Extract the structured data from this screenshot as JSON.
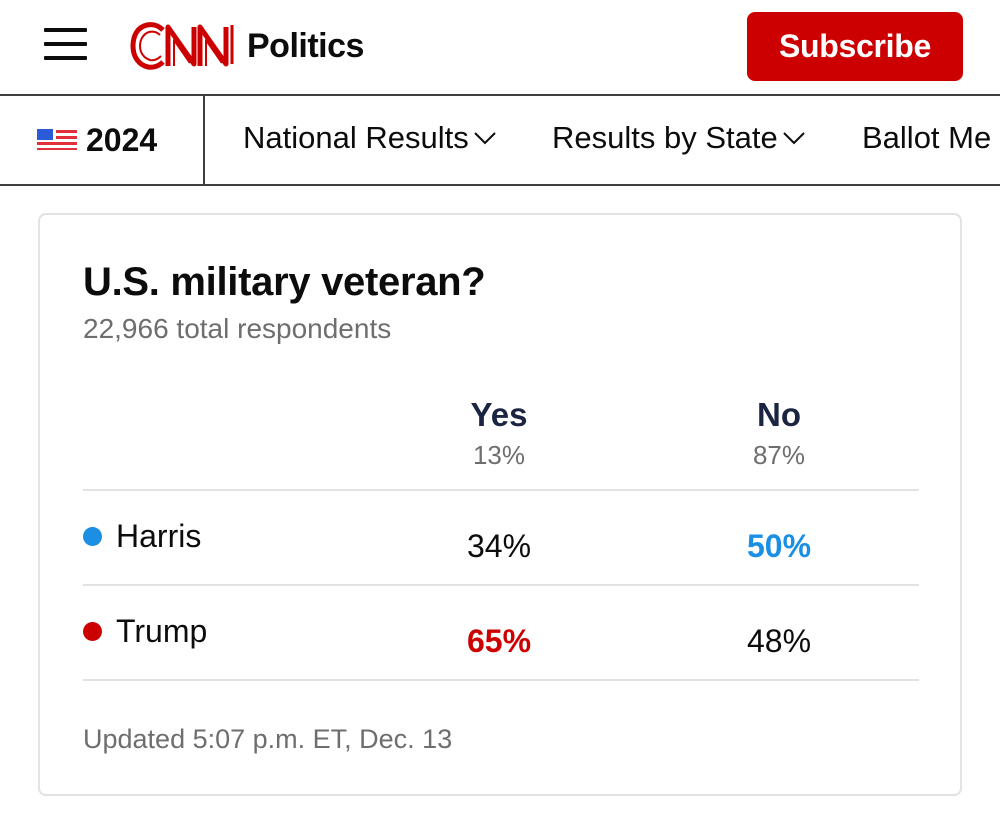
{
  "header": {
    "section_name": "Politics",
    "subscribe_label": "Subscribe",
    "brand_color": "#cc0000"
  },
  "subnav": {
    "year": "2024",
    "items": [
      {
        "label": "National Results"
      },
      {
        "label": "Results by State"
      },
      {
        "label": "Ballot Me"
      }
    ]
  },
  "poll": {
    "title": "U.S. military veteran?",
    "respondents": "22,966 total respondents",
    "columns": [
      {
        "name": "Yes",
        "share": "13%"
      },
      {
        "name": "No",
        "share": "87%"
      }
    ],
    "rows": [
      {
        "candidate": "Harris",
        "color": "#1a8fe3",
        "values": [
          "34%",
          "50%"
        ],
        "winner_col": 1
      },
      {
        "candidate": "Trump",
        "color": "#cc0000",
        "values": [
          "65%",
          "48%"
        ],
        "winner_col": 0
      }
    ],
    "updated": "Updated 5:07 p.m. ET, Dec. 13"
  }
}
